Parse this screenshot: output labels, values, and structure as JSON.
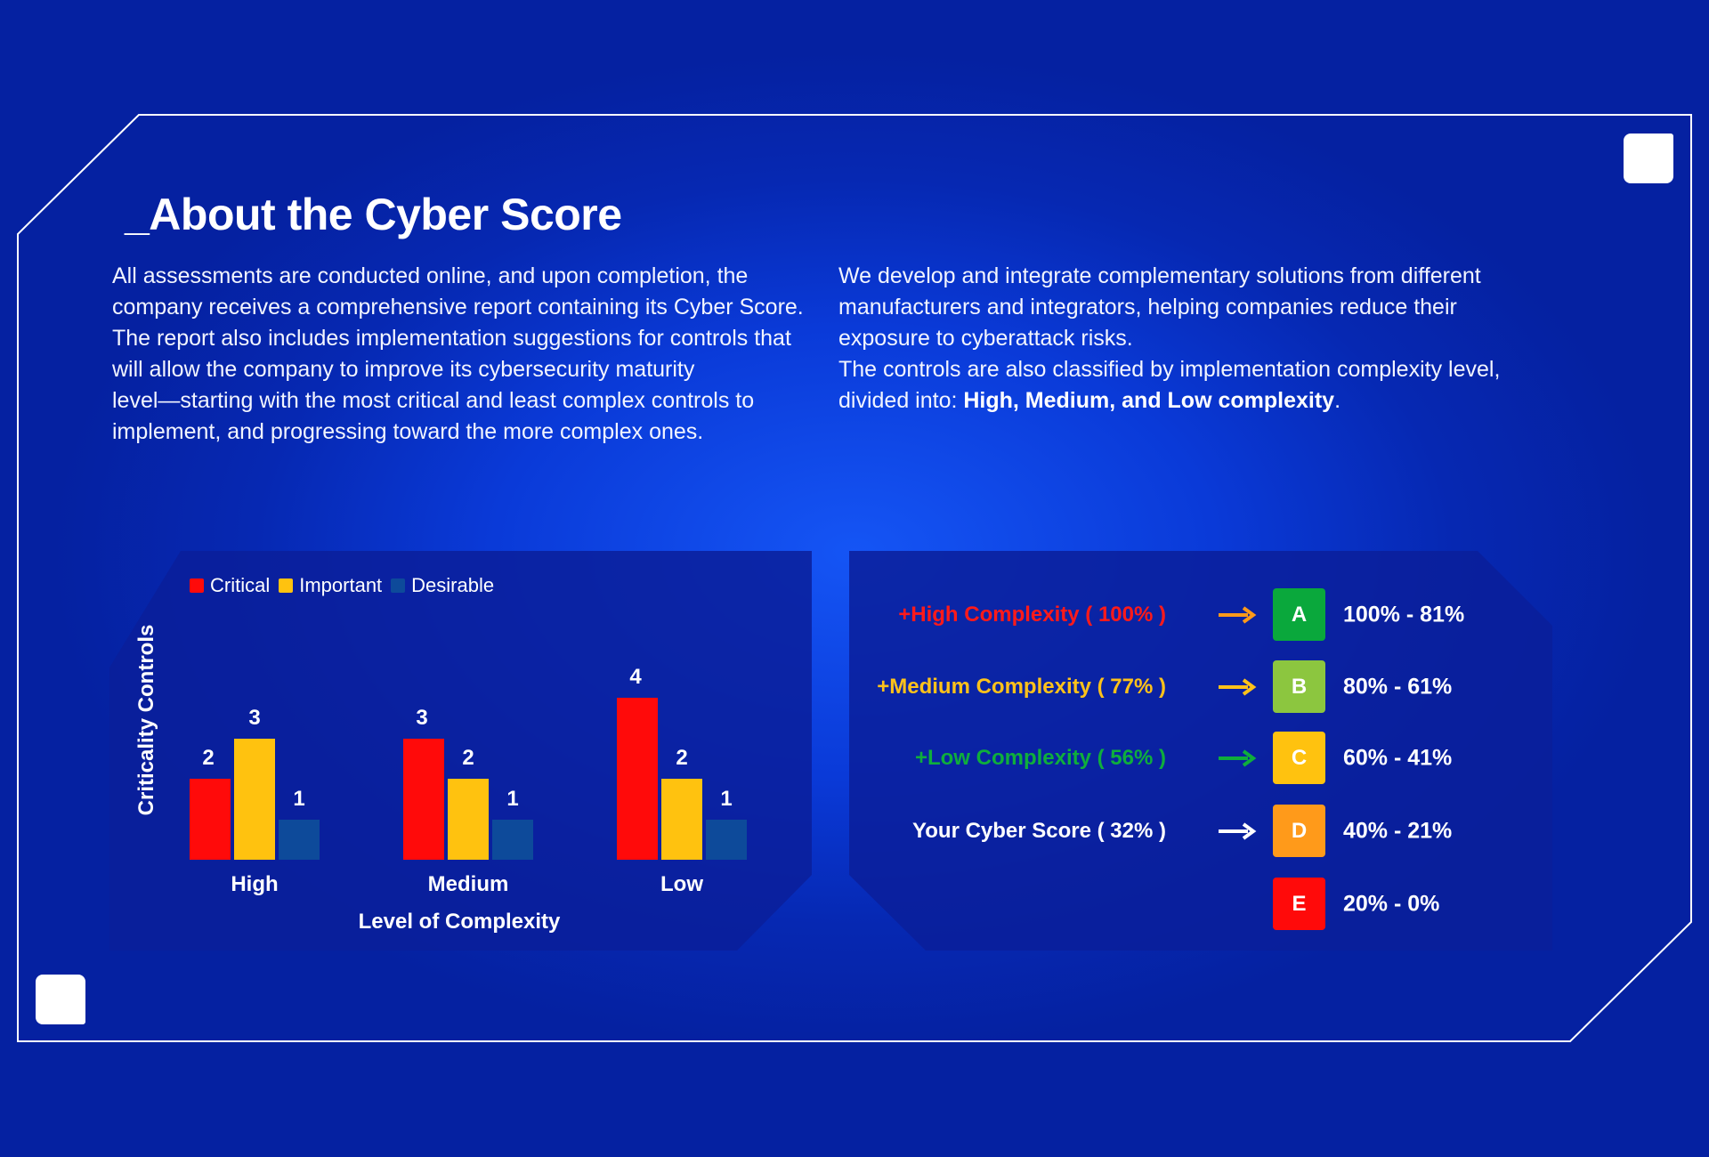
{
  "title": "_About the Cyber Score",
  "intro": {
    "left_lines": [
      "All assessments are conducted online, and upon completion, the",
      "company receives a comprehensive report containing its Cyber Score.",
      "The report also includes implementation suggestions for controls that",
      "will allow the company to improve its cybersecurity maturity",
      "level—starting with the most critical and least complex controls to",
      "implement, and progressing toward the more complex ones."
    ],
    "right_lines": [
      "We develop and integrate complementary solutions from different",
      "manufacturers and integrators, helping companies reduce their",
      "exposure to cyberattack risks.",
      "The controls are also classified by implementation complexity level,"
    ],
    "right_last_prefix": "divided into: ",
    "right_last_bold": "High, Medium, and Low complexity",
    "right_last_suffix": "."
  },
  "chart_data": {
    "type": "bar",
    "categories": [
      "High",
      "Medium",
      "Low"
    ],
    "series": [
      {
        "name": "Critical",
        "color": "#ff0a0a",
        "values": [
          2,
          3,
          4
        ]
      },
      {
        "name": "Important",
        "color": "#ffc20f",
        "values": [
          3,
          2,
          2
        ]
      },
      {
        "name": "Desirable",
        "color": "#0d4a9a",
        "values": [
          1,
          1,
          1
        ]
      }
    ],
    "xlabel": "Level of Complexity",
    "ylabel": "Criticality Controls",
    "ylim": [
      0,
      4
    ],
    "legend_position": "top-left",
    "grid": false
  },
  "score_scale": {
    "rows": [
      {
        "label_prefix": "+",
        "label": "High Complexity ( 100% )",
        "color": "#ff1a1a",
        "arrow_color": "#ff9a1a"
      },
      {
        "label_prefix": "+",
        "label": "Medium Complexity ( 77% )",
        "color": "#ffc21a",
        "arrow_color": "#ffc21a"
      },
      {
        "label_prefix": "+",
        "label": "Low Complexity ( 56% )",
        "color": "#0fae3c",
        "arrow_color": "#0fae3c"
      },
      {
        "label_prefix": "",
        "label": "Your Cyber Score ( 32% )",
        "color": "#ffffff",
        "arrow_color": "#ffffff"
      }
    ],
    "grades": [
      {
        "letter": "A",
        "range": "100% - 81%",
        "color": "#0aa83c"
      },
      {
        "letter": "B",
        "range": "80% - 61%",
        "color": "#8cc63f"
      },
      {
        "letter": "C",
        "range": "60% - 41%",
        "color": "#ffc20f"
      },
      {
        "letter": "D",
        "range": "40% - 21%",
        "color": "#ff9a1a"
      },
      {
        "letter": "E",
        "range": "20% - 0%",
        "color": "#ff0a0a"
      }
    ]
  }
}
